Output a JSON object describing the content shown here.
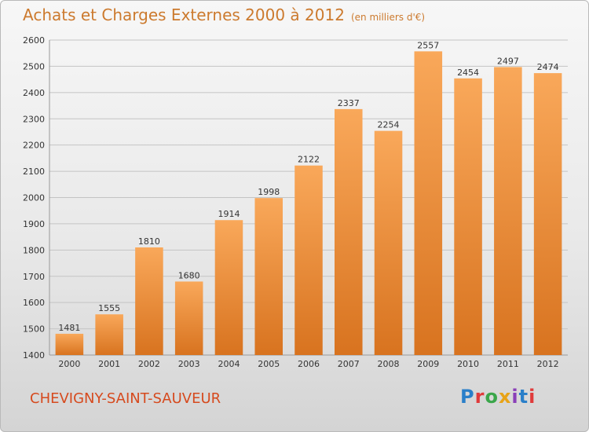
{
  "header": {
    "title": "Achats et Charges Externes 2000 à 2012",
    "unit_note": "(en milliers d'€)"
  },
  "footer": {
    "place": "CHEVIGNY-SAINT-SAUVEUR",
    "brand": "Proxiti",
    "brand_colors": [
      "#2a7fc9",
      "#e03a3a",
      "#3aa64a",
      "#e8a317",
      "#8a3fb8",
      "#2a7fc9",
      "#e03a3a"
    ]
  },
  "colors": {
    "bar_light": "#f9a85a",
    "bar_dark": "#d8731f",
    "grid": "#c4c4c4",
    "axis_text": "#333333"
  },
  "chart_data": {
    "type": "bar",
    "title": "Achats et Charges Externes 2000 à 2012",
    "subtitle": "(en milliers d'€)",
    "categories": [
      "2000",
      "2001",
      "2002",
      "2003",
      "2004",
      "2005",
      "2006",
      "2007",
      "2008",
      "2009",
      "2010",
      "2011",
      "2012"
    ],
    "values": [
      1481,
      1555,
      1810,
      1680,
      1914,
      1998,
      2122,
      2337,
      2254,
      2557,
      2454,
      2497,
      2474
    ],
    "ylim": [
      1400,
      2600
    ],
    "yticks": [
      1400,
      1500,
      1600,
      1700,
      1800,
      1900,
      2000,
      2100,
      2200,
      2300,
      2400,
      2500,
      2600
    ],
    "grid": true,
    "legend": "none"
  }
}
